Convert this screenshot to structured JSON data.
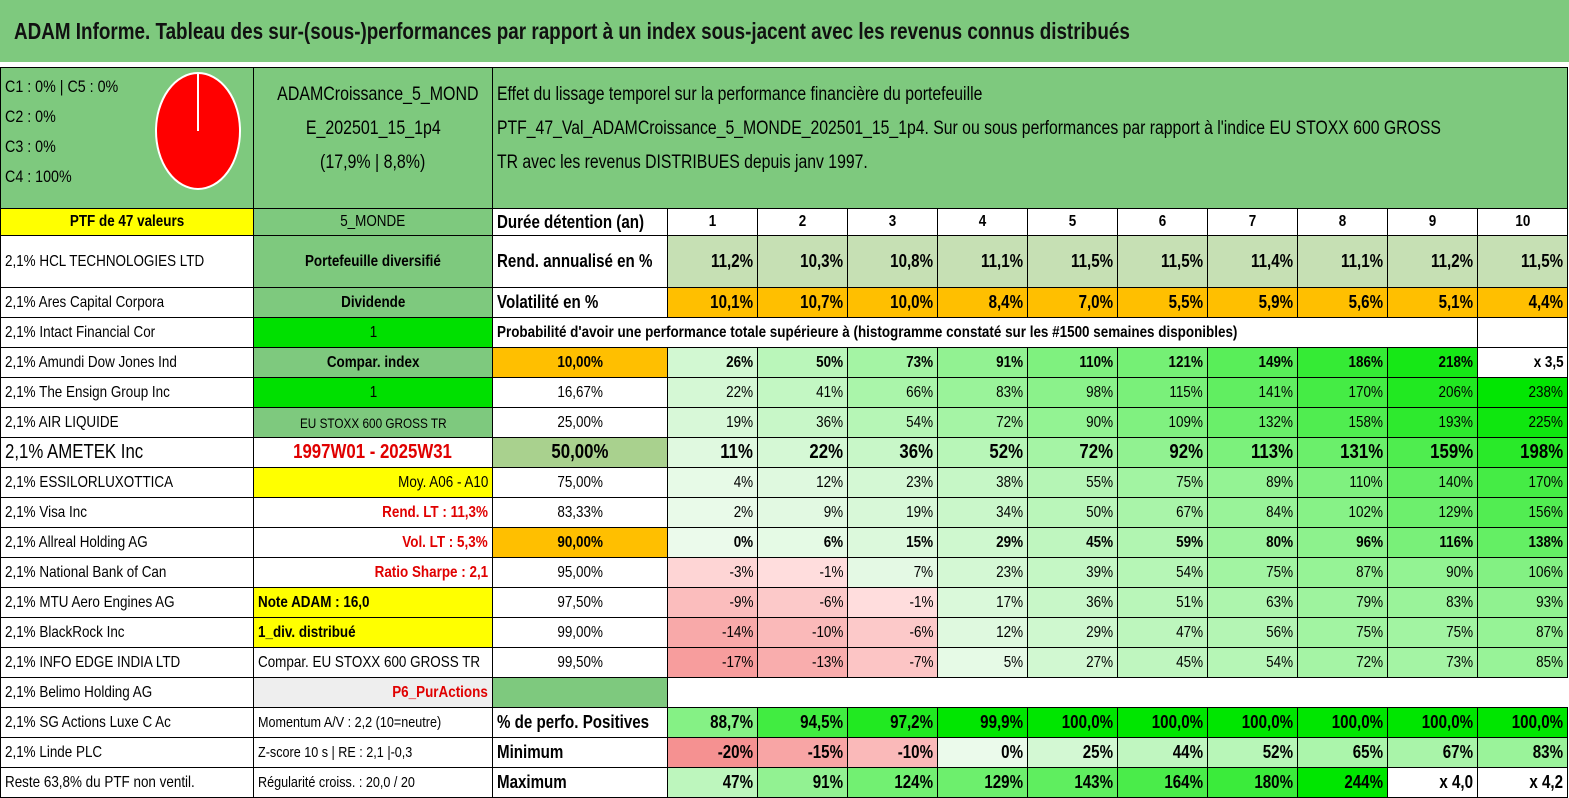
{
  "title": "ADAM Informe. Tableau des sur-(sous-)performances par rapport à un index sous-jacent avec les revenus connus distribués",
  "pie": {
    "c1c5": "C1 : 0% | C5 : 0%",
    "c2": "C2 : 0%",
    "c3": "C3 : 0%",
    "c4": "C4 : 100%"
  },
  "fund": {
    "name1": "ADAMCroissance_5_MOND",
    "name2": "E_202501_15_1p4",
    "perf": "(17,9% | 8,8%)"
  },
  "effect": {
    "l1": "Effet du lissage temporel sur la performance financière du portefeuille",
    "l2": "PTF_47_Val_ADAMCroissance_5_MONDE_202501_15_1p4. Sur ou sous performances par rapport à l'indice EU STOXX 600 GROSS",
    "l3": "TR avec les revenus DISTRIBUES depuis janv 1997."
  },
  "rows": [
    {
      "a": "PTF de 47 valeurs",
      "b": "5_MONDE",
      "c": "Durée détention (an)",
      "v": [
        "1",
        "2",
        "3",
        "4",
        "5",
        "6",
        "7",
        "8",
        "9",
        "10"
      ]
    },
    {
      "a": "2,1% HCL TECHNOLOGIES LTD",
      "b": "Portefeuille diversifié",
      "c": "Rend. annualisé en %",
      "v": [
        "11,2%",
        "10,3%",
        "10,8%",
        "11,1%",
        "11,5%",
        "11,5%",
        "11,4%",
        "11,1%",
        "11,2%",
        "11,5%"
      ]
    },
    {
      "a": "2,1% Ares Capital Corpora",
      "b": "Dividende",
      "c": "Volatilité en %",
      "v": [
        "10,1%",
        "10,7%",
        "10,0%",
        "8,4%",
        "7,0%",
        "5,5%",
        "5,9%",
        "5,6%",
        "5,1%",
        "4,4%"
      ]
    },
    {
      "a": "2,1% Intact Financial Cor",
      "b": "1",
      "c": "Probabilité d'avoir une performance totale supérieure à (histogramme constaté sur les #1500 semaines disponibles)",
      "v": []
    },
    {
      "a": "2,1% Amundi Dow Jones Ind",
      "b": "Compar. index",
      "c": "10,00%",
      "v": [
        "26%",
        "50%",
        "73%",
        "91%",
        "110%",
        "121%",
        "149%",
        "186%",
        "218%",
        "x 3,5"
      ]
    },
    {
      "a": "2,1% The Ensign Group Inc",
      "b": "1",
      "c": "16,67%",
      "v": [
        "22%",
        "41%",
        "66%",
        "83%",
        "98%",
        "115%",
        "141%",
        "170%",
        "206%",
        "238%"
      ]
    },
    {
      "a": "2,1% AIR LIQUIDE",
      "b": "EU STOXX 600 GROSS TR",
      "c": "25,00%",
      "v": [
        "19%",
        "36%",
        "54%",
        "72%",
        "90%",
        "109%",
        "132%",
        "158%",
        "193%",
        "225%"
      ]
    },
    {
      "a": "2,1% AMETEK Inc",
      "b": "1997W01 - 2025W31",
      "c": "50,00%",
      "v": [
        "11%",
        "22%",
        "36%",
        "52%",
        "72%",
        "92%",
        "113%",
        "131%",
        "159%",
        "198%"
      ]
    },
    {
      "a": "2,1% ESSILORLUXOTTICA",
      "b": "Moy. A06 - A10",
      "c": "75,00%",
      "v": [
        "4%",
        "12%",
        "23%",
        "38%",
        "55%",
        "75%",
        "89%",
        "110%",
        "140%",
        "170%"
      ]
    },
    {
      "a": "2,1% Visa Inc",
      "b": "Rend. LT : 11,3%",
      "c": "83,33%",
      "v": [
        "2%",
        "9%",
        "19%",
        "34%",
        "50%",
        "67%",
        "84%",
        "102%",
        "129%",
        "156%"
      ]
    },
    {
      "a": "2,1% Allreal Holding AG",
      "b": "Vol. LT : 5,3%",
      "c": "90,00%",
      "v": [
        "0%",
        "6%",
        "15%",
        "29%",
        "45%",
        "59%",
        "80%",
        "96%",
        "116%",
        "138%"
      ]
    },
    {
      "a": "2,1% National Bank of Can",
      "b": "Ratio Sharpe : 2,1",
      "c": "95,00%",
      "v": [
        "-3%",
        "-1%",
        "7%",
        "23%",
        "39%",
        "54%",
        "75%",
        "87%",
        "90%",
        "106%"
      ]
    },
    {
      "a": "2,1% MTU Aero Engines AG",
      "b": "Note ADAM : 16,0",
      "c": "97,50%",
      "v": [
        "-9%",
        "-6%",
        "-1%",
        "17%",
        "36%",
        "51%",
        "63%",
        "79%",
        "83%",
        "93%"
      ]
    },
    {
      "a": "2,1% BlackRock Inc",
      "b": "1_div. distribué",
      "c": "99,00%",
      "v": [
        "-14%",
        "-10%",
        "-6%",
        "12%",
        "29%",
        "47%",
        "56%",
        "75%",
        "75%",
        "87%"
      ]
    },
    {
      "a": "2,1% INFO EDGE INDIA LTD",
      "b": "Compar. EU STOXX 600 GROSS TR",
      "c": "99,50%",
      "v": [
        "-17%",
        "-13%",
        "-7%",
        "5%",
        "27%",
        "45%",
        "54%",
        "72%",
        "73%",
        "85%"
      ]
    },
    {
      "a": "2,1% Belimo Holding AG",
      "b": "P6_PurActions",
      "c": "",
      "v": []
    },
    {
      "a": "2,1% SG Actions Luxe C Ac",
      "b": "Momentum A/V : 2,2 (10=neutre)",
      "c": "% de perfo. Positives",
      "v": [
        "88,7%",
        "94,5%",
        "97,2%",
        "99,9%",
        "100,0%",
        "100,0%",
        "100,0%",
        "100,0%",
        "100,0%",
        "100,0%"
      ]
    },
    {
      "a": "2,1% Linde PLC",
      "b": "Z-score 10 s | RE : 2,1 |-0,3",
      "c": "Minimum",
      "v": [
        "-20%",
        "-15%",
        "-10%",
        "0%",
        "25%",
        "44%",
        "52%",
        "65%",
        "67%",
        "83%"
      ]
    },
    {
      "a": "Reste 63,8% du PTF non ventil.",
      "b": "Régularité croiss. : 20,0 / 20",
      "c": "Maximum",
      "v": [
        "47%",
        "91%",
        "124%",
        "129%",
        "143%",
        "164%",
        "180%",
        "244%",
        "x 4,0",
        "x 4,2"
      ]
    }
  ]
}
